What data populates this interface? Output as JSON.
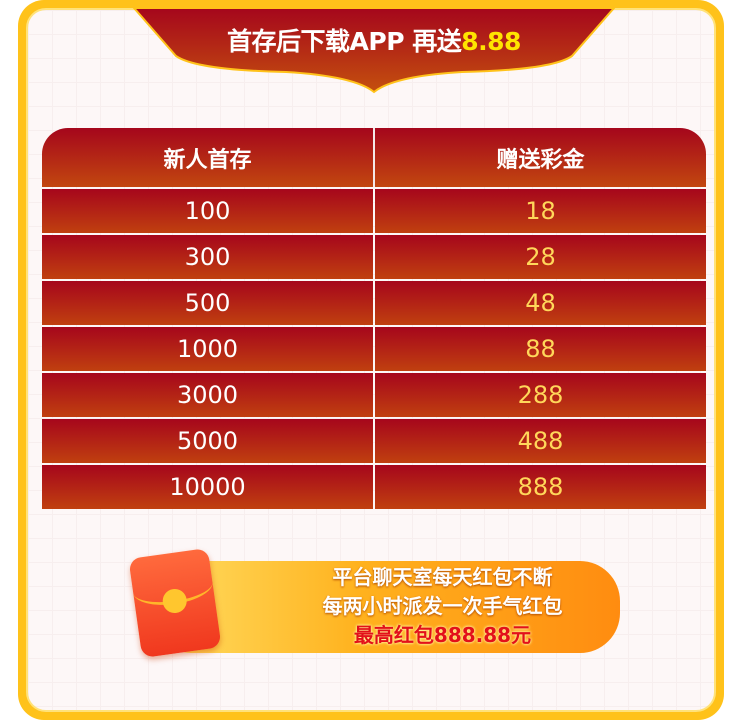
{
  "banner": {
    "title": "首存后下载APP 再送",
    "highlight": "8.88"
  },
  "table": {
    "headers": [
      "新人首存",
      "赠送彩金"
    ],
    "rows": [
      {
        "deposit": "100",
        "bonus": "18"
      },
      {
        "deposit": "300",
        "bonus": "28"
      },
      {
        "deposit": "500",
        "bonus": "48"
      },
      {
        "deposit": "1000",
        "bonus": "88"
      },
      {
        "deposit": "3000",
        "bonus": "288"
      },
      {
        "deposit": "5000",
        "bonus": "488"
      },
      {
        "deposit": "10000",
        "bonus": "888"
      }
    ]
  },
  "promo": {
    "line1": "平台聊天室每天红包不断",
    "line2": "每两小时派发一次手气红包",
    "line3": "最高红包888.88元",
    "icon": "red-envelope-icon"
  },
  "colors": {
    "gold": "#ffc21a",
    "red": "#a6061c",
    "bonus_text": "#ffd75a",
    "highlight": "#ffe400"
  }
}
